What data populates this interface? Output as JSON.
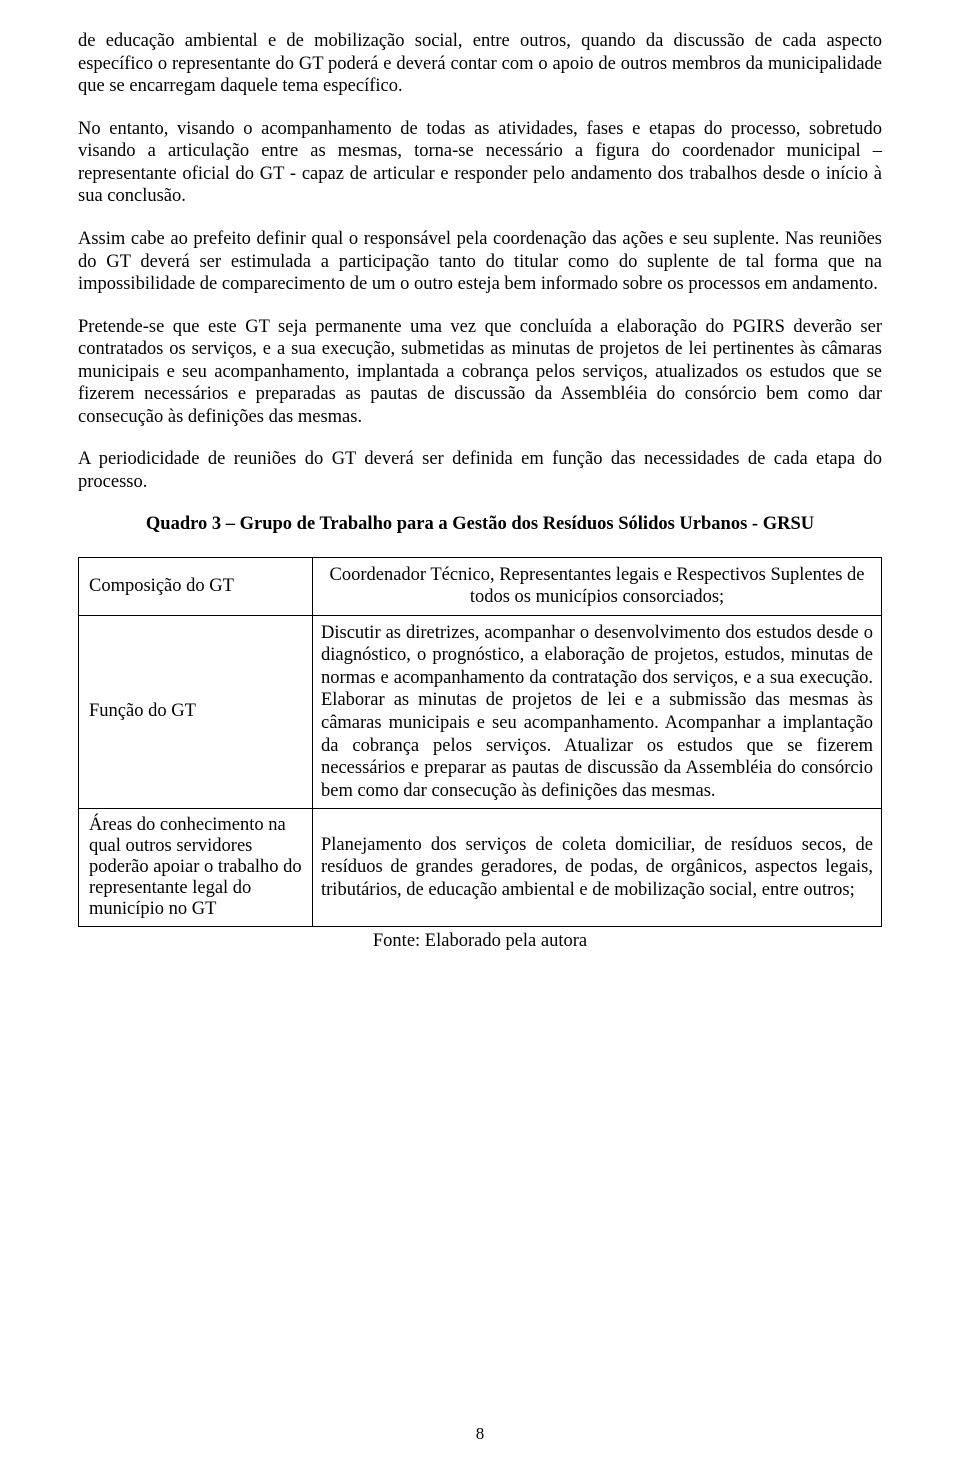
{
  "paragraphs": {
    "p1": "de educação ambiental e de mobilização social, entre outros, quando da discussão de cada aspecto específico o representante do GT poderá e deverá contar com o apoio de outros membros da municipalidade que se encarregam daquele tema específico.",
    "p2": "No entanto, visando o acompanhamento de todas as atividades, fases e etapas do processo, sobretudo visando a articulação entre as mesmas, torna-se necessário a figura do coordenador municipal – representante oficial do GT - capaz de articular e responder pelo andamento dos trabalhos desde o início à sua conclusão.",
    "p3": "Assim cabe ao prefeito definir qual o responsável pela coordenação das ações e seu suplente. Nas reuniões do GT deverá ser estimulada a participação tanto do titular como do suplente de tal forma que na impossibilidade de comparecimento de um o outro esteja bem informado sobre os processos em andamento.",
    "p4": "Pretende-se que este GT seja permanente uma vez que concluída a elaboração do PGIRS deverão ser contratados os serviços, e a sua execução, submetidas as minutas de projetos de lei pertinentes às câmaras municipais e seu acompanhamento, implantada a cobrança pelos serviços, atualizados os estudos que se fizerem necessários e preparadas as pautas de discussão da Assembléia do consórcio bem como dar consecução às definições das mesmas.",
    "p5": "A periodicidade de reuniões do GT deverá ser definida em função das necessidades de cada etapa do processo."
  },
  "heading": "Quadro 3 – Grupo de Trabalho para a Gestão dos Resíduos Sólidos Urbanos - GRSU",
  "table": {
    "rows": [
      {
        "label": "Composição do GT",
        "content": "Coordenador Técnico, Representantes legais e Respectivos Suplentes de todos os municípios consorciados;",
        "align": "center"
      },
      {
        "label": "Função do GT",
        "content": "Discutir as diretrizes, acompanhar o desenvolvimento dos estudos desde o diagnóstico, o prognóstico, a elaboração de projetos, estudos, minutas de normas e acompanhamento da contratação dos serviços, e a sua execução. Elaborar as minutas de projetos de lei e a submissão das mesmas às câmaras municipais e seu acompanhamento. Acompanhar a implantação da cobrança pelos serviços. Atualizar os estudos que se fizerem necessários e preparar as pautas de discussão da Assembléia do consórcio bem como dar consecução às definições das mesmas.",
        "align": "justify"
      },
      {
        "label": "Áreas do conhecimento na qual outros servidores poderão apoiar o trabalho do representante legal do município no GT",
        "content": "Planejamento dos serviços de coleta domiciliar, de resíduos secos, de resíduos de grandes geradores, de podas, de orgânicos, aspectos legais, tributários, de educação ambiental e de mobilização social, entre outros;",
        "align": "justify"
      }
    ]
  },
  "source": "Fonte: Elaborado pela autora",
  "page_number": "8"
}
